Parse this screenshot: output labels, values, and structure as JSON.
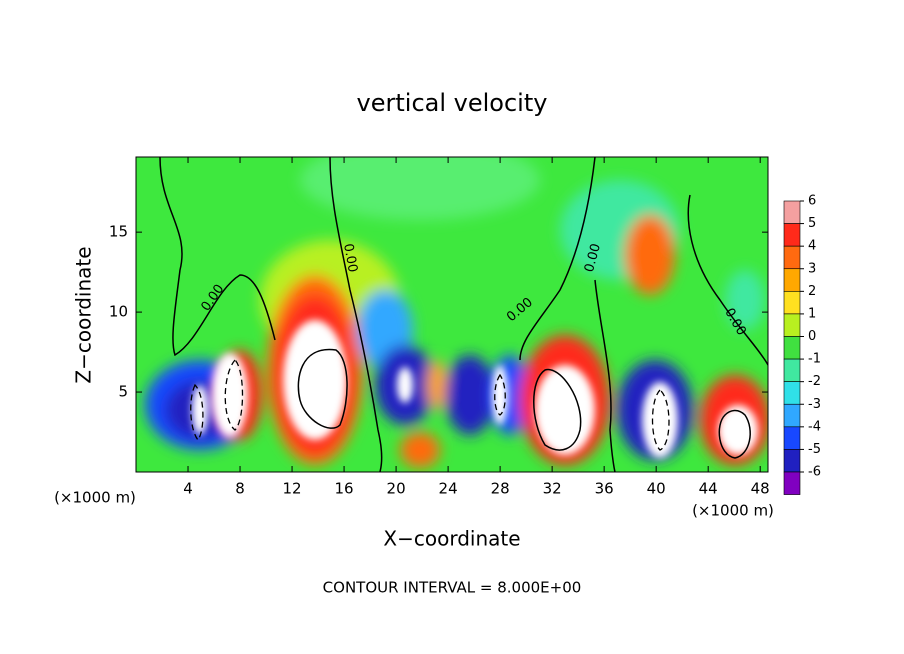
{
  "chart_data": {
    "type": "contour",
    "title": "vertical velocity",
    "x_label": "X−coordinate",
    "y_label": "Z−coordinate",
    "x_unit": "(×1000 m)",
    "footer": "CONTOUR INTERVAL = 8.000E+00",
    "xlim": [
      0,
      48.6
    ],
    "ylim": [
      0,
      19.7
    ],
    "xticks": [
      4,
      8,
      12,
      16,
      20,
      24,
      28,
      32,
      36,
      40,
      44,
      48
    ],
    "yticks": [
      5,
      10,
      15
    ],
    "contour_labels": [
      "0.00",
      "0.00",
      "0.00",
      "0.00",
      "0.00"
    ],
    "colorbar": {
      "ticks": [
        6,
        5,
        4,
        3,
        2,
        1,
        0,
        -1,
        -2,
        -3,
        -4,
        -5,
        -6
      ],
      "colors": [
        "#f4a0a0",
        "#ff2a1a",
        "#ff6a10",
        "#ffa800",
        "#ffe020",
        "#b8f020",
        "#40e040",
        "#40e8a0",
        "#30e0e8",
        "#30a8ff",
        "#1848ff",
        "#2020c0",
        "#8000c0"
      ]
    }
  }
}
